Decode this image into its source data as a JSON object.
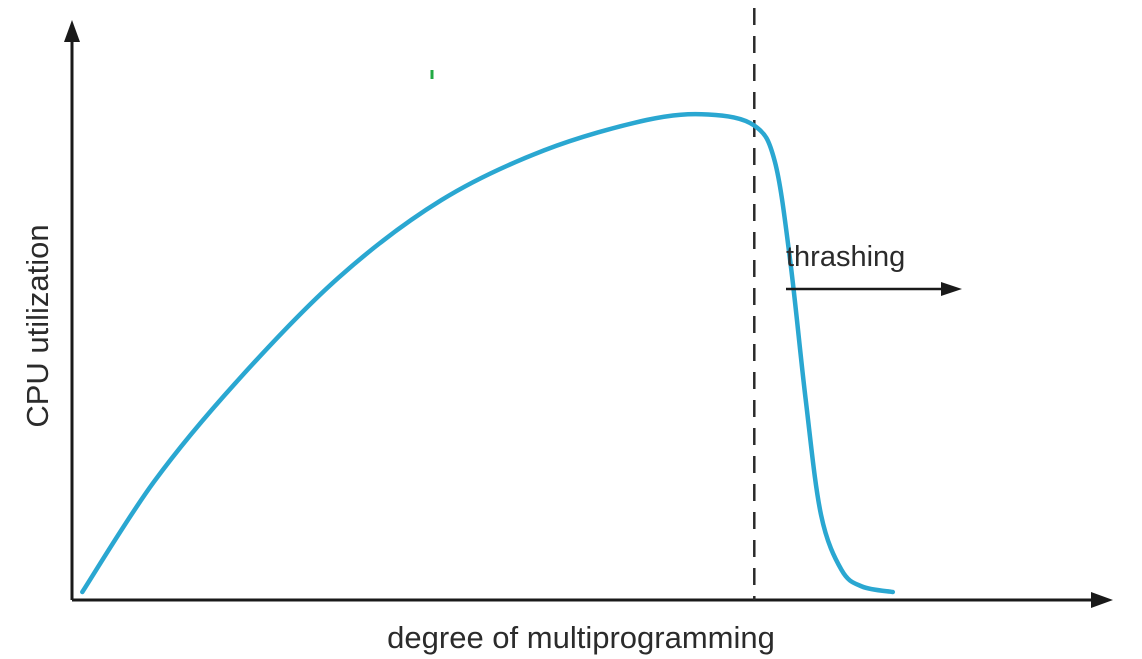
{
  "chart_data": {
    "type": "line",
    "title": "",
    "xlabel": "degree of multiprogramming",
    "ylabel": "CPU utilization",
    "xlim": [
      0,
      100
    ],
    "ylim": [
      0,
      100
    ],
    "grid": false,
    "legend": "none",
    "series": [
      {
        "color": "#2aa7d1",
        "x": [
          1,
          8,
          16,
          26,
          36,
          46,
          56,
          62,
          66.5,
          68.5,
          70,
          71.5,
          73,
          75,
          77,
          80
        ],
        "y": [
          0,
          20,
          38,
          57,
          71,
          80,
          85.5,
          86.5,
          84.5,
          78,
          60,
          35,
          14,
          4,
          1,
          0
        ]
      }
    ],
    "threshold": {
      "x": 66.5,
      "style": "dashed"
    },
    "annotations": [
      {
        "text": "thrashing",
        "direction": "right"
      }
    ],
    "accent_mark_color": "#22aa44"
  }
}
